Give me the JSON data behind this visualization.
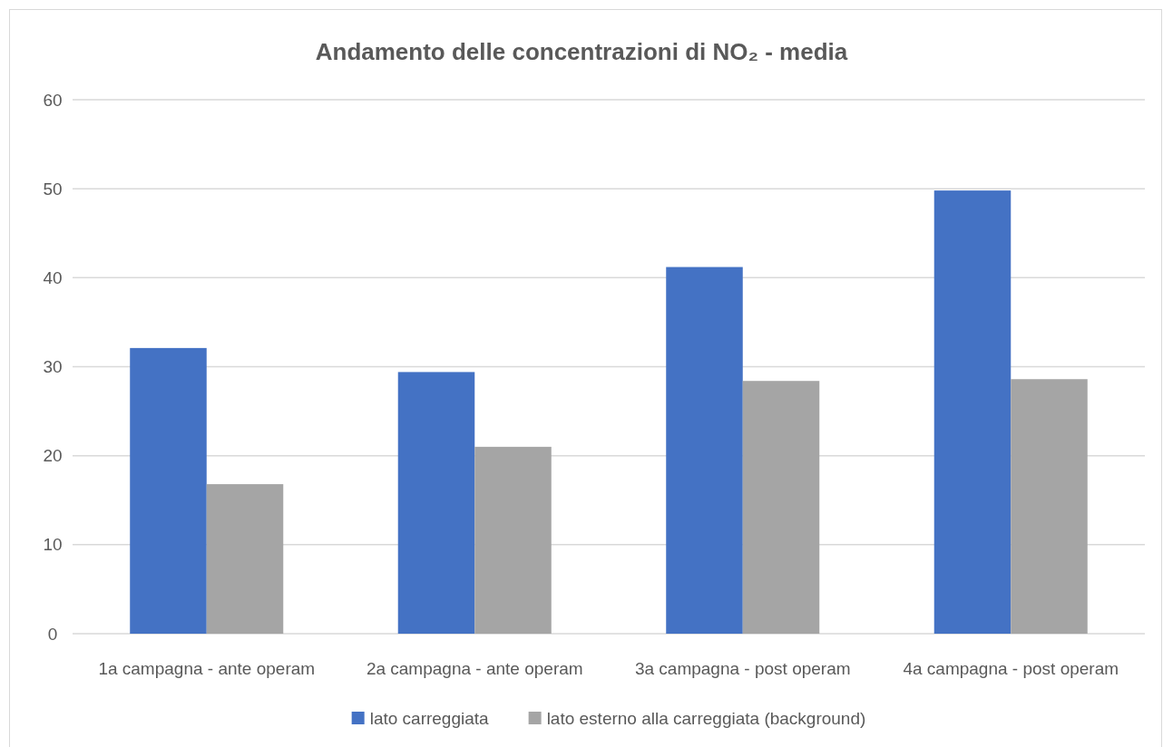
{
  "chart_data": {
    "type": "bar",
    "title": "Andamento delle concentrazioni di NO₂ - media",
    "categories": [
      "1a campagna - ante operam",
      "2a campagna - ante operam",
      "3a campagna - post operam",
      "4a campagna - post operam"
    ],
    "series": [
      {
        "name": "lato carreggiata",
        "color": "#4472c4",
        "values": [
          32.1,
          29.4,
          41.2,
          49.8
        ]
      },
      {
        "name": "lato esterno alla carreggiata (background)",
        "color": "#a5a5a5",
        "values": [
          16.8,
          21.0,
          28.4,
          28.6
        ]
      }
    ],
    "ylim": [
      0,
      60
    ],
    "yticks": [
      0,
      10,
      20,
      30,
      40,
      50,
      60
    ],
    "grid": "y",
    "legend": "bottom"
  }
}
